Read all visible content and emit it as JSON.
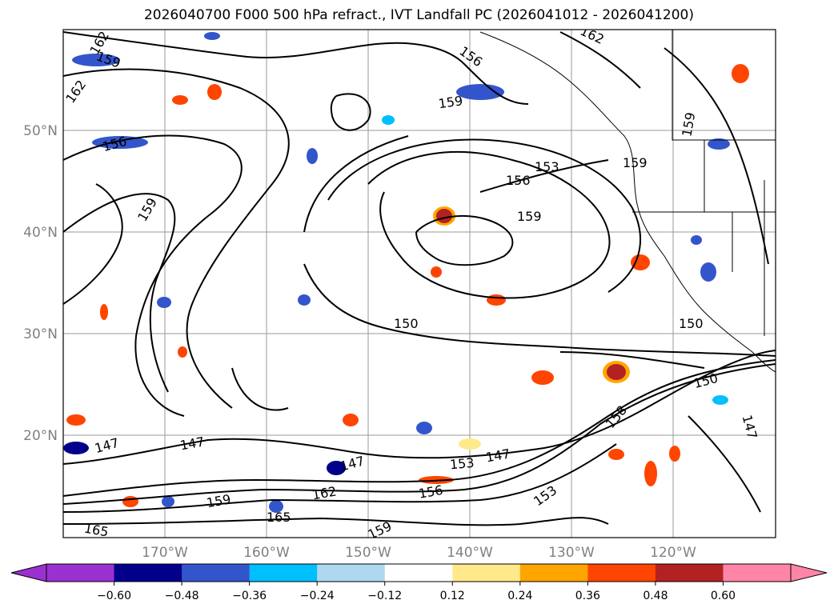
{
  "title": "2026040700 F000 500 hPa refract., IVT Landfall PC (2026041012 - 2026041200)",
  "map": {
    "lat_labels": [
      "50°N",
      "40°N",
      "30°N",
      "20°N"
    ],
    "lon_labels": [
      "170°W",
      "160°W",
      "150°W",
      "140°W",
      "130°W",
      "120°W"
    ]
  },
  "colorbar": {
    "colors": [
      "#9b30d0",
      "#00008b",
      "#3355cc",
      "#00bfff",
      "#add8f0",
      "#ffffff",
      "#ffe98a",
      "#ffa500",
      "#ff4500",
      "#b22222",
      "#ff85a8"
    ],
    "under_color": "#9b30d0",
    "over_color": "#ff85a8",
    "tick_labels": [
      "−0.60",
      "−0.48",
      "−0.36",
      "−0.24",
      "−0.12",
      "0.12",
      "0.24",
      "0.36",
      "0.48",
      "0.60"
    ]
  },
  "contour_labels": [
    {
      "text": "162"
    },
    {
      "text": "159"
    },
    {
      "text": "162"
    },
    {
      "text": "156"
    },
    {
      "text": "159"
    },
    {
      "text": "156"
    },
    {
      "text": "159"
    },
    {
      "text": "162"
    },
    {
      "text": "153"
    },
    {
      "text": "156"
    },
    {
      "text": "159"
    },
    {
      "text": "159"
    },
    {
      "text": "159"
    },
    {
      "text": "150"
    },
    {
      "text": "150"
    },
    {
      "text": "150"
    },
    {
      "text": "147"
    },
    {
      "text": "147"
    },
    {
      "text": "147"
    },
    {
      "text": "153"
    },
    {
      "text": "147"
    },
    {
      "text": "156"
    },
    {
      "text": "162"
    },
    {
      "text": "159"
    },
    {
      "text": "165"
    },
    {
      "text": "165"
    },
    {
      "text": "159"
    },
    {
      "text": "153"
    },
    {
      "text": "147"
    },
    {
      "text": "158"
    }
  ]
}
